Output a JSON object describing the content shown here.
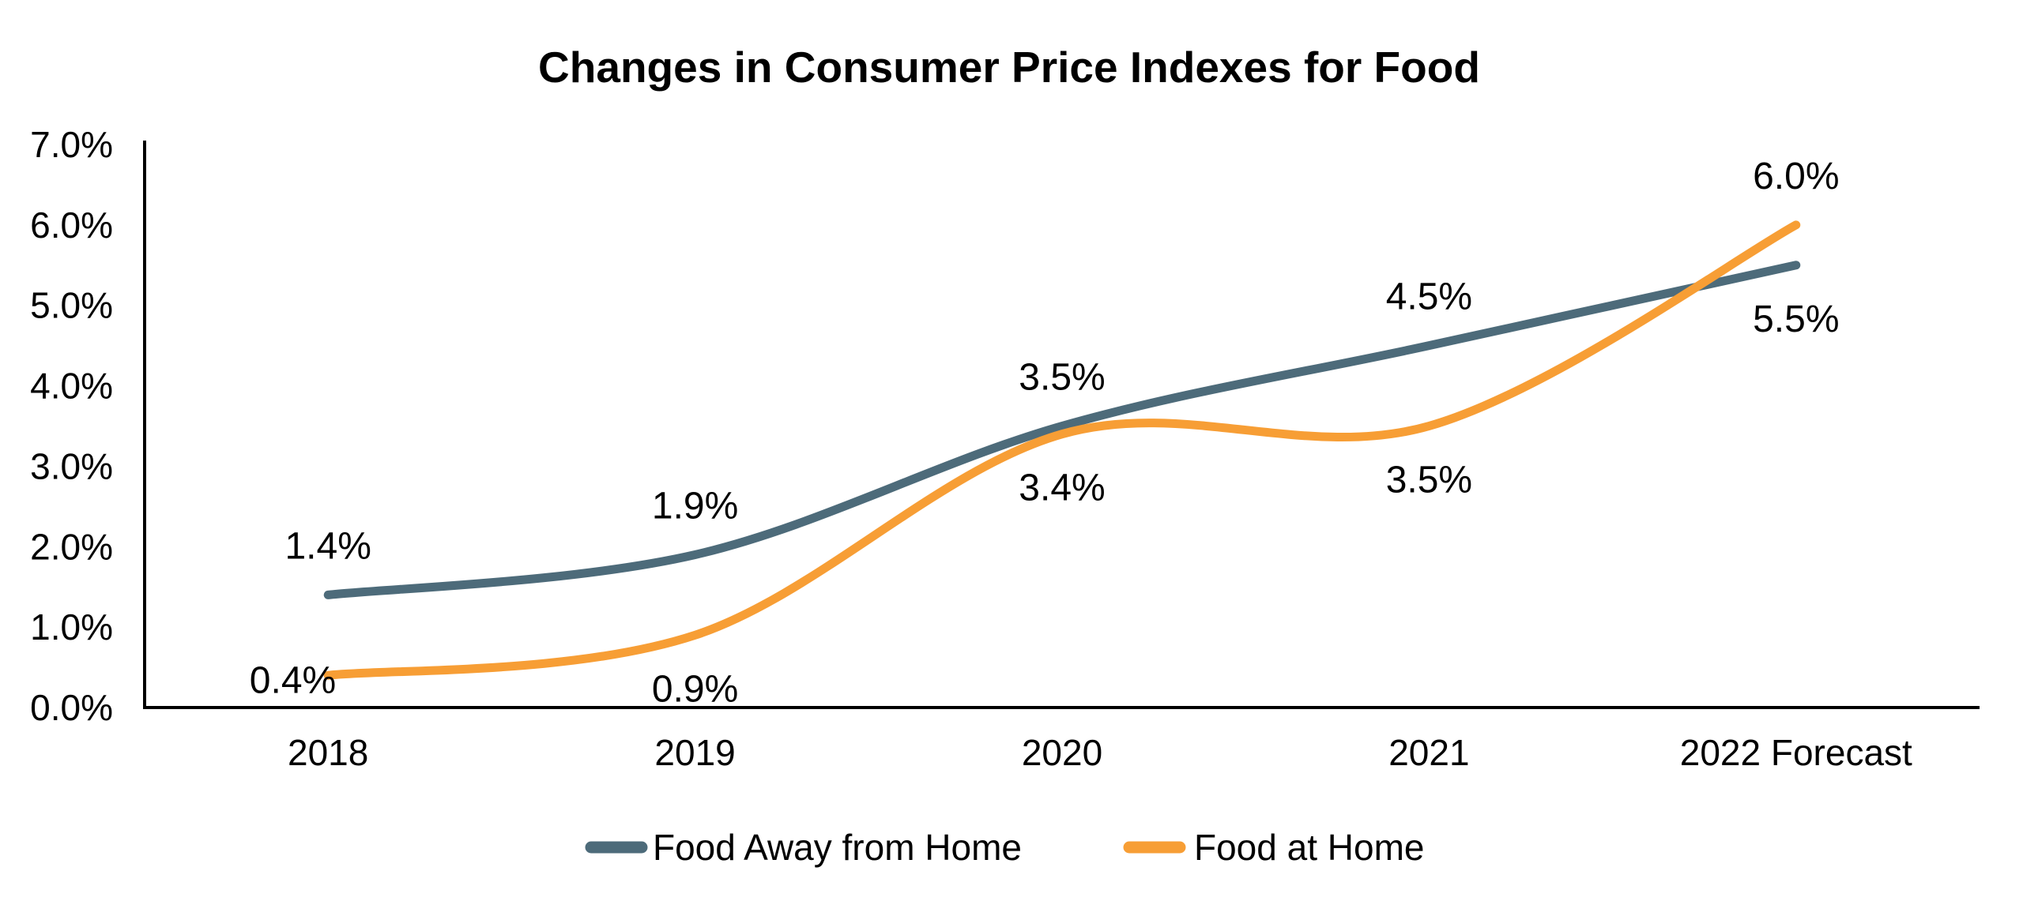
{
  "title": "Changes in Consumer Price Indexes for Food",
  "chart_data": {
    "type": "line",
    "smoothed": true,
    "categories": [
      "2018",
      "2019",
      "2020",
      "2021",
      "2022 Forecast"
    ],
    "series": [
      {
        "name": "Food Away from Home",
        "color": "#4d6b7a",
        "values": [
          1.4,
          1.9,
          3.5,
          4.5,
          5.5
        ],
        "point_labels": [
          "1.4%",
          "1.9%",
          "3.5%",
          "4.5%",
          "5.5%"
        ],
        "label_positions": [
          "above",
          "above",
          "above",
          "above",
          "below"
        ]
      },
      {
        "name": "Food at Home",
        "color": "#f79e35",
        "values": [
          0.4,
          0.9,
          3.4,
          3.5,
          6.0
        ],
        "point_labels": [
          "0.4%",
          "0.9%",
          "3.4%",
          "3.5%",
          "6.0%"
        ],
        "label_positions": [
          "left",
          "below",
          "below",
          "below",
          "above"
        ]
      }
    ],
    "y_ticks": [
      {
        "label": "0.0%",
        "value": 0
      },
      {
        "label": "1.0%",
        "value": 1
      },
      {
        "label": "2.0%",
        "value": 2
      },
      {
        "label": "3.0%",
        "value": 3
      },
      {
        "label": "4.0%",
        "value": 4
      },
      {
        "label": "5.0%",
        "value": 5
      },
      {
        "label": "6.0%",
        "value": 6
      },
      {
        "label": "7.0%",
        "value": 7
      }
    ],
    "ylim": [
      0,
      7
    ],
    "xlabel": "",
    "ylabel": "",
    "grid": false,
    "legend_position": "bottom",
    "axis_color": "#000000",
    "text_color": "#000000",
    "background_color": "#ffffff"
  }
}
